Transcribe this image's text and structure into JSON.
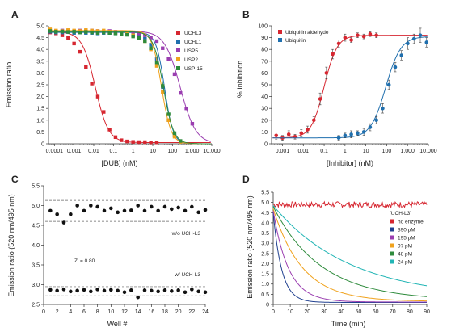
{
  "panels": {
    "A": {
      "label": "A",
      "xlabel": "[DUB] (nM)",
      "ylabel": "Emission ratio"
    },
    "B": {
      "label": "B",
      "xlabel": "[Inhibitor] (nM)",
      "ylabel": "% Inhibition"
    },
    "C": {
      "label": "C",
      "xlabel": "Well #",
      "ylabel": "Emission ratio (520 nm/495 nm)",
      "zprime": "Z' = 0.80",
      "upper_label": "w/o UCH-L3",
      "lower_label": "w/ UCH-L3"
    },
    "D": {
      "label": "D",
      "xlabel": "Time (min)",
      "ylabel": "Emission ratio (520 nm/495 nm)",
      "legend_title": "[UCH-L3]"
    }
  },
  "chart_data": [
    {
      "panel": "A",
      "type": "scatter",
      "xscale": "log",
      "xlim": [
        5e-05,
        10000
      ],
      "ylim": [
        0,
        5.0
      ],
      "xticks": [
        0.0001,
        0.001,
        0.01,
        0.1,
        1,
        10,
        100,
        1000,
        10000
      ],
      "xticklabels": [
        "0.0001",
        "0.001",
        "0.01",
        "0.1",
        "1",
        "10",
        "100",
        "1,000",
        "10,000"
      ],
      "yticks": [
        0,
        0.5,
        1.0,
        1.5,
        2.0,
        2.5,
        3.0,
        3.5,
        4.0,
        4.5,
        5.0
      ],
      "yticklabels": [
        "0",
        "0.5",
        "1.0",
        "1.5",
        "2.0",
        "2.5",
        "3.0",
        "3.5",
        "4.0",
        "4.5",
        "5.0"
      ],
      "legend": "top-right",
      "series": [
        {
          "name": "UCHL3",
          "color": "#d62630",
          "marker": "square",
          "x": [
            6e-05,
            0.00012,
            0.00025,
            0.0005,
            0.001,
            0.002,
            0.004,
            0.008,
            0.016,
            0.032,
            0.064,
            0.128,
            0.256,
            0.5,
            1,
            2,
            4,
            8,
            16
          ],
          "y": [
            4.72,
            4.68,
            4.6,
            4.48,
            4.25,
            3.9,
            3.25,
            2.55,
            2.0,
            1.35,
            0.6,
            0.28,
            0.15,
            0.1,
            0.08,
            0.07,
            0.07,
            0.06,
            0.06
          ],
          "curve": {
            "top": 4.75,
            "bottom": 0.05,
            "ec50": 0.012,
            "hill": 1.3
          }
        },
        {
          "name": "UCHL1",
          "color": "#1f6fae",
          "marker": "square",
          "x": [
            6e-05,
            0.00012,
            0.00025,
            0.0005,
            0.001,
            0.002,
            0.004,
            0.008,
            0.016,
            0.032,
            0.064,
            0.128,
            0.256,
            0.5,
            1,
            2,
            4,
            8,
            16,
            32,
            64,
            128,
            256
          ],
          "y": [
            4.75,
            4.72,
            4.72,
            4.74,
            4.7,
            4.72,
            4.7,
            4.7,
            4.68,
            4.7,
            4.7,
            4.68,
            4.66,
            4.64,
            4.6,
            4.55,
            4.45,
            4.2,
            3.6,
            2.4,
            1.0,
            0.35,
            0.1
          ],
          "curve": {
            "top": 4.72,
            "bottom": 0.0,
            "ec50": 40,
            "hill": 2.0
          }
        },
        {
          "name": "USP5",
          "color": "#9a3db0",
          "marker": "square",
          "x": [
            6e-05,
            0.00012,
            0.00025,
            0.0005,
            0.001,
            0.002,
            0.004,
            0.008,
            0.016,
            0.032,
            0.064,
            0.128,
            0.256,
            0.5,
            1,
            2,
            4,
            8,
            16,
            32,
            64,
            128,
            256,
            512,
            1024
          ],
          "y": [
            4.8,
            4.78,
            4.8,
            4.8,
            4.78,
            4.8,
            4.78,
            4.8,
            4.78,
            4.76,
            4.78,
            4.75,
            4.74,
            4.72,
            4.7,
            4.68,
            4.6,
            4.5,
            4.35,
            4.05,
            3.6,
            2.95,
            2.15,
            1.5,
            0.85
          ],
          "curve": {
            "top": 4.78,
            "bottom": 0.0,
            "ec50": 250,
            "hill": 1.1
          }
        },
        {
          "name": "USP2",
          "color": "#f0a21c",
          "marker": "square",
          "x": [
            6e-05,
            0.00012,
            0.00025,
            0.0005,
            0.001,
            0.002,
            0.004,
            0.008,
            0.016,
            0.032,
            0.064,
            0.128,
            0.256,
            0.5,
            1,
            2,
            4,
            8,
            16,
            32,
            64,
            128,
            256
          ],
          "y": [
            4.85,
            4.8,
            4.78,
            4.82,
            4.8,
            4.78,
            4.82,
            4.8,
            4.78,
            4.8,
            4.75,
            4.7,
            4.72,
            4.68,
            4.6,
            4.5,
            4.35,
            4.0,
            3.3,
            2.2,
            1.0,
            0.3,
            0.08
          ],
          "curve": {
            "top": 4.8,
            "bottom": 0.0,
            "ec50": 28,
            "hill": 1.8
          }
        },
        {
          "name": "USP-15",
          "color": "#2e8b3c",
          "marker": "square",
          "x": [
            6e-05,
            0.00012,
            0.00025,
            0.0005,
            0.001,
            0.002,
            0.004,
            0.008,
            0.016,
            0.032,
            0.064,
            0.128,
            0.256,
            0.5,
            1,
            2,
            4,
            8,
            16,
            32,
            64,
            128,
            256
          ],
          "y": [
            4.78,
            4.75,
            4.76,
            4.74,
            4.75,
            4.72,
            4.74,
            4.72,
            4.7,
            4.72,
            4.7,
            4.68,
            4.65,
            4.62,
            4.55,
            4.48,
            4.35,
            4.05,
            3.45,
            2.45,
            1.25,
            0.45,
            0.12
          ],
          "curve": {
            "top": 4.75,
            "bottom": 0.0,
            "ec50": 35,
            "hill": 1.7
          }
        }
      ]
    },
    {
      "panel": "B",
      "type": "scatter",
      "xscale": "log",
      "xlim": [
        0.0003,
        10000
      ],
      "ylim": [
        0,
        100
      ],
      "xticks": [
        0.001,
        0.01,
        0.1,
        1,
        10,
        100,
        1000,
        10000
      ],
      "xticklabels": [
        "0.001",
        "0.01",
        "0.1",
        "1",
        "10",
        "100",
        "1,000",
        "10,000"
      ],
      "yticks": [
        0,
        10,
        20,
        30,
        40,
        50,
        60,
        70,
        80,
        90,
        100
      ],
      "yticklabels": [
        "0",
        "10",
        "20",
        "30",
        "40",
        "50",
        "60",
        "70",
        "80",
        "90",
        "100"
      ],
      "legend": "top-left",
      "series": [
        {
          "name": "Ubiquitin aldehyde",
          "color": "#d62630",
          "marker": "circle",
          "x": [
            0.0005,
            0.001,
            0.002,
            0.004,
            0.008,
            0.016,
            0.032,
            0.064,
            0.128,
            0.256,
            0.5,
            1,
            2,
            4,
            8,
            16,
            32
          ],
          "y": [
            7,
            5,
            8,
            6,
            9,
            12,
            20,
            38,
            60,
            76,
            85,
            90,
            88,
            92,
            91,
            93,
            92
          ],
          "err": [
            3,
            2,
            3,
            2,
            3,
            3,
            3,
            5,
            5,
            4,
            3,
            3,
            2,
            2,
            2,
            2,
            2
          ],
          "curve": {
            "top": 92,
            "bottom": 5,
            "ec50": 0.1,
            "hill": 1.4
          }
        },
        {
          "name": "Ubiquitin",
          "color": "#1f6fae",
          "marker": "circle",
          "x": [
            0.5,
            1,
            2,
            4,
            8,
            16,
            32,
            64,
            128,
            256,
            512,
            1024,
            2048,
            4096,
            8192
          ],
          "y": [
            5,
            7,
            8,
            9,
            10,
            14,
            20,
            30,
            50,
            65,
            75,
            85,
            89,
            92,
            86
          ],
          "err": [
            2,
            2,
            3,
            2,
            3,
            3,
            3,
            4,
            4,
            4,
            4,
            5,
            4,
            6,
            4
          ],
          "curve": {
            "top": 91,
            "bottom": 5,
            "ec50": 90,
            "hill": 1.2
          }
        }
      ]
    },
    {
      "panel": "C",
      "type": "scatter",
      "xlim": [
        0,
        24
      ],
      "ylim": [
        2.5,
        5.5
      ],
      "xticks": [
        0,
        2,
        4,
        6,
        8,
        10,
        12,
        14,
        16,
        18,
        20,
        22,
        24
      ],
      "xticklabels": [
        "0",
        "2",
        "4",
        "6",
        "8",
        "10",
        "12",
        "14",
        "16",
        "18",
        "20",
        "22",
        "24"
      ],
      "yticks": [
        2.5,
        3.0,
        3.5,
        4.0,
        4.5,
        5.0,
        5.5
      ],
      "yticklabels": [
        "2.5",
        "3.0",
        "3.5",
        "4.0",
        "4.5",
        "5.0",
        "5.5"
      ],
      "dashed_lines": [
        5.13,
        4.6,
        2.95,
        2.72
      ],
      "series": [
        {
          "name": "w/o UCH-L3",
          "color": "#111111",
          "marker": "circle",
          "x": [
            1,
            2,
            3,
            4,
            5,
            6,
            7,
            8,
            9,
            10,
            11,
            12,
            13,
            14,
            15,
            16,
            17,
            18,
            19,
            20,
            21,
            22,
            23,
            24
          ],
          "y": [
            4.87,
            4.78,
            4.57,
            4.78,
            5.0,
            4.87,
            5.0,
            4.97,
            4.87,
            4.93,
            4.83,
            4.87,
            4.88,
            5.0,
            4.87,
            4.97,
            4.87,
            4.97,
            4.91,
            4.95,
            4.87,
            4.97,
            4.83,
            4.89
          ]
        },
        {
          "name": "w/ UCH-L3",
          "color": "#111111",
          "marker": "circle",
          "x": [
            1,
            2,
            3,
            4,
            5,
            6,
            7,
            8,
            9,
            10,
            11,
            12,
            13,
            14,
            15,
            16,
            17,
            18,
            19,
            20,
            21,
            22,
            23,
            24
          ],
          "y": [
            2.87,
            2.85,
            2.88,
            2.83,
            2.85,
            2.87,
            2.83,
            2.88,
            2.85,
            2.87,
            2.85,
            2.81,
            2.86,
            2.68,
            2.86,
            2.85,
            2.83,
            2.86,
            2.84,
            2.86,
            2.81,
            2.88,
            2.83,
            2.81
          ]
        }
      ]
    },
    {
      "panel": "D",
      "type": "line",
      "xlim": [
        0,
        90
      ],
      "ylim": [
        0,
        5.5
      ],
      "xticks": [
        0,
        10,
        20,
        30,
        40,
        50,
        60,
        70,
        80,
        90
      ],
      "xticklabels": [
        "0",
        "10",
        "20",
        "30",
        "40",
        "50",
        "60",
        "70",
        "80",
        "90"
      ],
      "yticks": [
        0,
        0.5,
        1.0,
        1.5,
        2.0,
        2.5,
        3.0,
        3.5,
        4.0,
        4.5,
        5.0,
        5.5
      ],
      "yticklabels": [
        "0",
        "0.5",
        "1.0",
        "1.5",
        "2.0",
        "2.5",
        "3.0",
        "3.5",
        "4.0",
        "4.5",
        "5.0",
        "5.5"
      ],
      "legend": "right",
      "series": [
        {
          "name": "no enzyme",
          "color": "#d62630",
          "start": 4.9,
          "end": 4.9,
          "tau": 0,
          "noisy": true
        },
        {
          "name": "390 pM",
          "color": "#1f3f8f",
          "start": 4.5,
          "end": 0.1,
          "tau": 5
        },
        {
          "name": "195 pM",
          "color": "#9a3db0",
          "start": 4.6,
          "end": 0.12,
          "tau": 9
        },
        {
          "name": "97 pM",
          "color": "#f0a21c",
          "start": 4.7,
          "end": 0.15,
          "tau": 17
        },
        {
          "name": "48 pM",
          "color": "#2e8b3c",
          "start": 4.8,
          "end": 0.2,
          "tau": 28
        },
        {
          "name": "24 pM",
          "color": "#22b5b5",
          "start": 4.85,
          "end": 0.3,
          "tau": 45
        }
      ]
    }
  ]
}
